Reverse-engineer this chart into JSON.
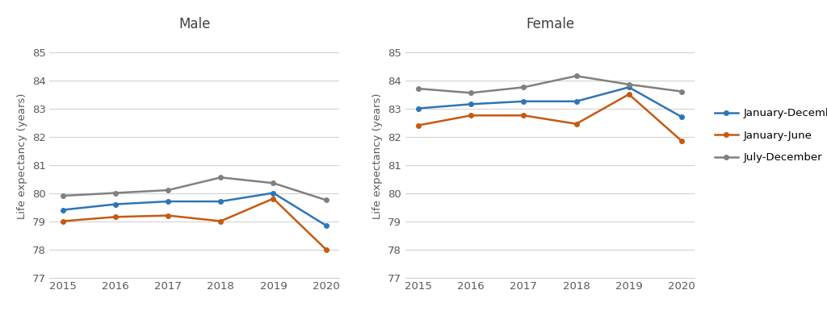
{
  "years": [
    2015,
    2016,
    2017,
    2018,
    2019,
    2020
  ],
  "male": {
    "jan_dec": [
      79.4,
      79.6,
      79.7,
      79.7,
      80.0,
      78.85
    ],
    "jan_jun": [
      79.0,
      79.15,
      79.2,
      79.0,
      79.8,
      78.0
    ],
    "jul_dec": [
      79.9,
      80.0,
      80.1,
      80.55,
      80.35,
      79.75
    ]
  },
  "female": {
    "jan_dec": [
      83.0,
      83.15,
      83.25,
      83.25,
      83.75,
      82.7
    ],
    "jan_jun": [
      82.4,
      82.75,
      82.75,
      82.45,
      83.5,
      81.85
    ],
    "jul_dec": [
      83.7,
      83.55,
      83.75,
      84.15,
      83.85,
      83.6
    ]
  },
  "colors": {
    "jan_dec": "#2e75b6",
    "jan_jun": "#c55a11",
    "jul_dec": "#808080"
  },
  "legend_labels": [
    "January-December",
    "January-June",
    "July-December"
  ],
  "ylabel": "Life expectancy (years)",
  "title_male": "Male",
  "title_female": "Female",
  "ylim": [
    77,
    85.6
  ],
  "yticks": [
    77,
    78,
    79,
    80,
    81,
    82,
    83,
    84,
    85
  ],
  "background_color": "#ffffff",
  "grid_color": "#d3d3d3",
  "spine_color": "#d3d3d3"
}
